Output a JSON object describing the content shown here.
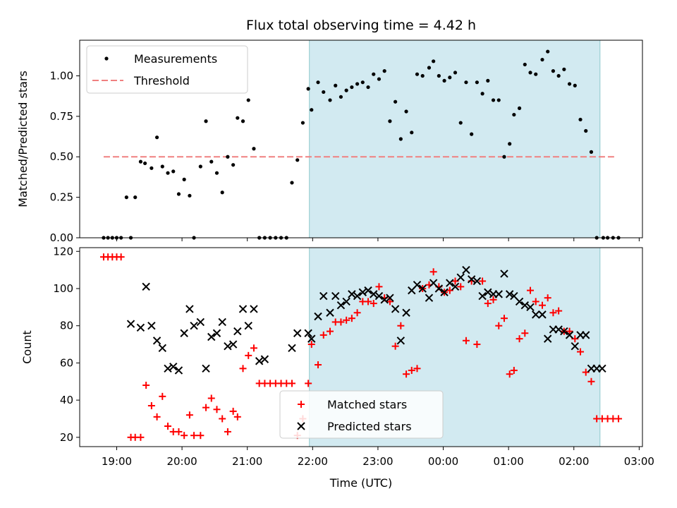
{
  "chart_data": [
    {
      "type": "scatter",
      "title": "Flux total observing time = 4.42 h",
      "xlabel": "",
      "ylabel": "Matched/Predicted stars",
      "ylim": [
        0,
        1.22
      ],
      "yticks": [
        "0.00",
        "0.25",
        "0.50",
        "0.75",
        "1.00"
      ],
      "observing_window": [
        "21:57",
        "02:24"
      ],
      "window_color": "#add8e6",
      "legend": {
        "position": "upper-left",
        "entries": [
          "Measurements",
          "Threshold"
        ]
      },
      "threshold": {
        "name": "Threshold",
        "value": 0.5,
        "x_start": "18:48",
        "x_end": "02:37",
        "color": "#f08080"
      },
      "series": [
        {
          "name": "Measurements",
          "color": "#000000",
          "x": [
            "18:48",
            "18:52",
            "18:56",
            "19:00",
            "19:04",
            "19:09",
            "19:13",
            "19:17",
            "19:22",
            "19:26",
            "19:32",
            "19:37",
            "19:42",
            "19:47",
            "19:52",
            "19:57",
            "20:02",
            "20:07",
            "20:11",
            "20:17",
            "20:22",
            "20:27",
            "20:32",
            "20:37",
            "20:42",
            "20:47",
            "20:51",
            "20:56",
            "21:01",
            "21:06",
            "21:11",
            "21:16",
            "21:21",
            "21:26",
            "21:31",
            "21:36",
            "21:41",
            "21:46",
            "21:51",
            "21:56",
            "21:59",
            "22:05",
            "22:10",
            "22:16",
            "22:21",
            "22:26",
            "22:31",
            "22:36",
            "22:41",
            "22:46",
            "22:51",
            "22:56",
            "23:01",
            "23:06",
            "23:11",
            "23:16",
            "23:21",
            "23:26",
            "23:31",
            "23:36",
            "23:41",
            "23:47",
            "23:51",
            "23:56",
            "24:01",
            "24:06",
            "24:11",
            "24:16",
            "24:21",
            "24:26",
            "24:31",
            "24:36",
            "24:41",
            "24:46",
            "24:51",
            "24:56",
            "25:01",
            "25:05",
            "25:10",
            "25:15",
            "25:20",
            "25:25",
            "25:31",
            "25:36",
            "25:41",
            "25:46",
            "25:51",
            "25:56",
            "26:01",
            "26:06",
            "26:11",
            "26:16",
            "26:21",
            "26:27",
            "26:31",
            "26:36",
            "26:41"
          ],
          "values": [
            0,
            0,
            0,
            0,
            0,
            0.25,
            0,
            0.25,
            0.47,
            0.46,
            0.43,
            0.62,
            0.44,
            0.4,
            0.41,
            0.27,
            0.36,
            0.26,
            0,
            0.44,
            0.72,
            0.47,
            0.4,
            0.28,
            0.5,
            0.45,
            0.74,
            0.72,
            0.85,
            0.55,
            0,
            0,
            0,
            0,
            0,
            0,
            0.34,
            0.48,
            0.71,
            0.92,
            0.79,
            0.96,
            0.9,
            0.85,
            0.94,
            0.87,
            0.91,
            0.93,
            0.95,
            0.96,
            0.93,
            1.01,
            0.98,
            1.03,
            0.72,
            0.84,
            0.61,
            0.78,
            0.65,
            1.01,
            1.0,
            1.05,
            1.09,
            1.0,
            0.97,
            0.99,
            1.02,
            0.71,
            0.96,
            0.64,
            0.96,
            0.89,
            0.97,
            0.85,
            0.85,
            0.5,
            0.58,
            0.76,
            0.8,
            1.07,
            1.02,
            1.01,
            1.1,
            1.15,
            1.03,
            1.0,
            1.04,
            0.95,
            0.94,
            0.73,
            0.66,
            0.53,
            0,
            0,
            0,
            0,
            0
          ]
        }
      ]
    },
    {
      "type": "scatter",
      "title": "",
      "xlabel": "Time (UTC)",
      "ylabel": "Count",
      "ylim": [
        15,
        122
      ],
      "yticks": [
        "20",
        "40",
        "60",
        "80",
        "100",
        "120"
      ],
      "xticks": [
        "19:00",
        "20:00",
        "21:00",
        "22:00",
        "23:00",
        "00:00",
        "01:00",
        "02:00",
        "03:00"
      ],
      "observing_window": [
        "21:57",
        "02:24"
      ],
      "window_color": "#add8e6",
      "legend": {
        "position": "lower-center",
        "entries": [
          "Matched stars",
          "Predicted stars"
        ]
      },
      "series": [
        {
          "name": "Matched stars",
          "marker": "plus",
          "color": "#ff0000",
          "x": [
            "18:48",
            "18:52",
            "18:56",
            "19:00",
            "19:04",
            "19:13",
            "19:17",
            "19:22",
            "19:27",
            "19:32",
            "19:37",
            "19:42",
            "19:47",
            "19:52",
            "19:57",
            "20:02",
            "20:07",
            "20:11",
            "20:17",
            "20:22",
            "20:27",
            "20:32",
            "20:37",
            "20:42",
            "20:47",
            "20:51",
            "20:56",
            "21:01",
            "21:06",
            "21:11",
            "21:16",
            "21:21",
            "21:26",
            "21:31",
            "21:36",
            "21:41",
            "21:46",
            "21:51",
            "21:56",
            "21:59",
            "22:05",
            "22:10",
            "22:16",
            "22:21",
            "22:26",
            "22:31",
            "22:36",
            "22:41",
            "22:46",
            "22:51",
            "22:56",
            "23:01",
            "23:06",
            "23:11",
            "23:16",
            "23:21",
            "23:26",
            "23:31",
            "23:36",
            "23:41",
            "23:47",
            "23:51",
            "23:56",
            "24:01",
            "24:06",
            "24:11",
            "24:16",
            "24:21",
            "24:26",
            "24:31",
            "24:36",
            "24:41",
            "24:46",
            "24:51",
            "24:56",
            "25:01",
            "25:05",
            "25:10",
            "25:15",
            "25:20",
            "25:25",
            "25:31",
            "25:36",
            "25:41",
            "25:46",
            "25:51",
            "25:56",
            "26:01",
            "26:06",
            "26:11",
            "26:16",
            "26:21",
            "26:26",
            "26:31",
            "26:36",
            "26:41"
          ],
          "values": [
            117,
            117,
            117,
            117,
            117,
            20,
            20,
            20,
            48,
            37,
            31,
            42,
            26,
            23,
            23,
            21,
            32,
            21,
            21,
            36,
            41,
            35,
            30,
            23,
            34,
            31,
            57,
            64,
            68,
            49,
            49,
            49,
            49,
            49,
            49,
            49,
            21,
            30,
            49,
            70,
            59,
            75,
            77,
            82,
            82,
            83,
            84,
            87,
            93,
            93,
            92,
            101,
            95,
            93,
            69,
            80,
            54,
            56,
            57,
            100,
            102,
            109,
            101,
            98,
            99,
            104,
            101,
            72,
            104,
            70,
            104,
            92,
            94,
            80,
            84,
            54,
            56,
            73,
            76,
            99,
            93,
            91,
            95,
            87,
            88,
            77,
            77,
            73,
            66,
            55,
            50,
            30,
            30,
            30,
            30,
            30
          ]
        },
        {
          "name": "Predicted stars",
          "marker": "x",
          "color": "#000000",
          "x": [
            "19:13",
            "19:22",
            "19:27",
            "19:32",
            "19:37",
            "19:42",
            "19:47",
            "19:52",
            "19:57",
            "20:02",
            "20:07",
            "20:11",
            "20:17",
            "20:22",
            "20:27",
            "20:32",
            "20:37",
            "20:42",
            "20:47",
            "20:51",
            "20:56",
            "21:01",
            "21:06",
            "21:11",
            "21:16",
            "21:41",
            "21:46",
            "21:56",
            "21:59",
            "22:05",
            "22:10",
            "22:16",
            "22:21",
            "22:26",
            "22:31",
            "22:36",
            "22:41",
            "22:46",
            "22:51",
            "22:56",
            "23:01",
            "23:06",
            "23:11",
            "23:16",
            "23:21",
            "23:26",
            "23:31",
            "23:36",
            "23:41",
            "23:47",
            "23:51",
            "23:56",
            "24:01",
            "24:06",
            "24:11",
            "24:16",
            "24:21",
            "24:26",
            "24:31",
            "24:36",
            "24:41",
            "24:46",
            "24:51",
            "24:56",
            "25:01",
            "25:05",
            "25:10",
            "25:15",
            "25:20",
            "25:25",
            "25:31",
            "25:36",
            "25:41",
            "25:46",
            "25:51",
            "25:56",
            "26:01",
            "26:06",
            "26:11",
            "26:16",
            "26:21",
            "26:26"
          ],
          "values": [
            81,
            79,
            101,
            80,
            72,
            68,
            57,
            58,
            56,
            76,
            89,
            80,
            82,
            57,
            74,
            76,
            82,
            69,
            70,
            77,
            89,
            80,
            89,
            61,
            62,
            68,
            76,
            76,
            73,
            85,
            96,
            87,
            96,
            91,
            93,
            97,
            96,
            98,
            99,
            97,
            96,
            94,
            95,
            89,
            72,
            87,
            99,
            102,
            100,
            95,
            103,
            100,
            98,
            103,
            101,
            106,
            110,
            105,
            104,
            96,
            98,
            97,
            97,
            108,
            97,
            96,
            93,
            91,
            90,
            86,
            86,
            73,
            78,
            78,
            77,
            75,
            69,
            75,
            75,
            57,
            57,
            57
          ]
        }
      ]
    }
  ]
}
